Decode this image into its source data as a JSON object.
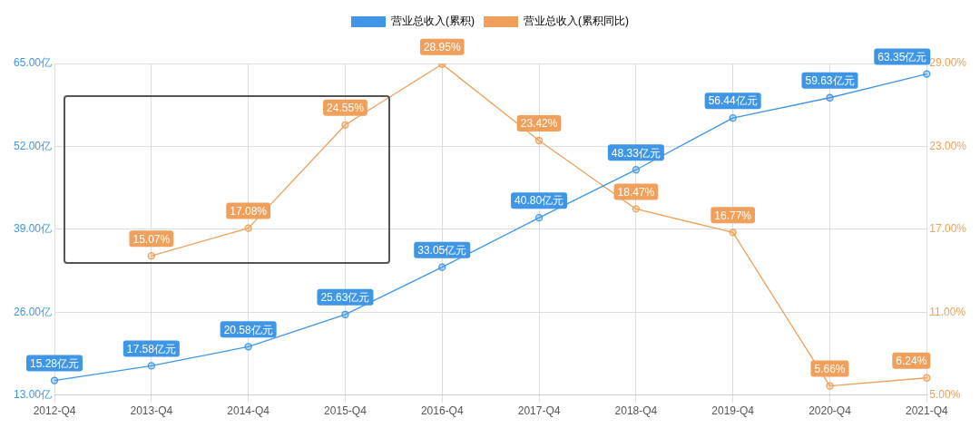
{
  "chart_data": {
    "type": "line",
    "categories": [
      "2012-Q4",
      "2013-Q4",
      "2014-Q4",
      "2015-Q4",
      "2016-Q4",
      "2017-Q4",
      "2018-Q4",
      "2019-Q4",
      "2020-Q4",
      "2021-Q4"
    ],
    "series": [
      {
        "name": "营业总收入(累积)",
        "color": "#3f96e6",
        "values": [
          15.28,
          17.58,
          20.58,
          25.63,
          33.05,
          40.8,
          48.33,
          56.44,
          59.63,
          63.35
        ],
        "value_labels": [
          "15.28亿元",
          "17.58亿元",
          "20.58亿元",
          "25.63亿元",
          "33.05亿元",
          "40.80亿元",
          "48.33亿元",
          "56.44亿元",
          "59.63亿元",
          "63.35亿元"
        ]
      },
      {
        "name": "营业总收入(累积同比)",
        "color": "#f0a05a",
        "axis": "y2",
        "values": [
          null,
          15.07,
          17.08,
          24.55,
          28.95,
          23.42,
          18.47,
          16.77,
          5.66,
          6.24
        ],
        "value_labels": [
          null,
          "15.07%",
          "17.08%",
          "24.55%",
          "28.95%",
          "23.42%",
          "18.47%",
          "16.77%",
          "5.66%",
          "6.24%"
        ]
      }
    ],
    "ylim": [
      13,
      65
    ],
    "yticks": [
      {
        "value": 13,
        "label": "13.00亿"
      },
      {
        "value": 26,
        "label": "26.00亿"
      },
      {
        "value": 39,
        "label": "39.00亿"
      },
      {
        "value": 52,
        "label": "52.00亿"
      },
      {
        "value": 65,
        "label": "65.00亿"
      }
    ],
    "y2lim": [
      5,
      29
    ],
    "y2ticks": [
      {
        "value": 5,
        "label": "5.00%"
      },
      {
        "value": 11,
        "label": "11.00%"
      },
      {
        "value": 17,
        "label": "17.00%"
      },
      {
        "value": 23,
        "label": "23.00%"
      },
      {
        "value": 29,
        "label": "29.00%"
      }
    ],
    "grid": true,
    "legend": "top",
    "marker": "circle",
    "line_style": "solid"
  }
}
